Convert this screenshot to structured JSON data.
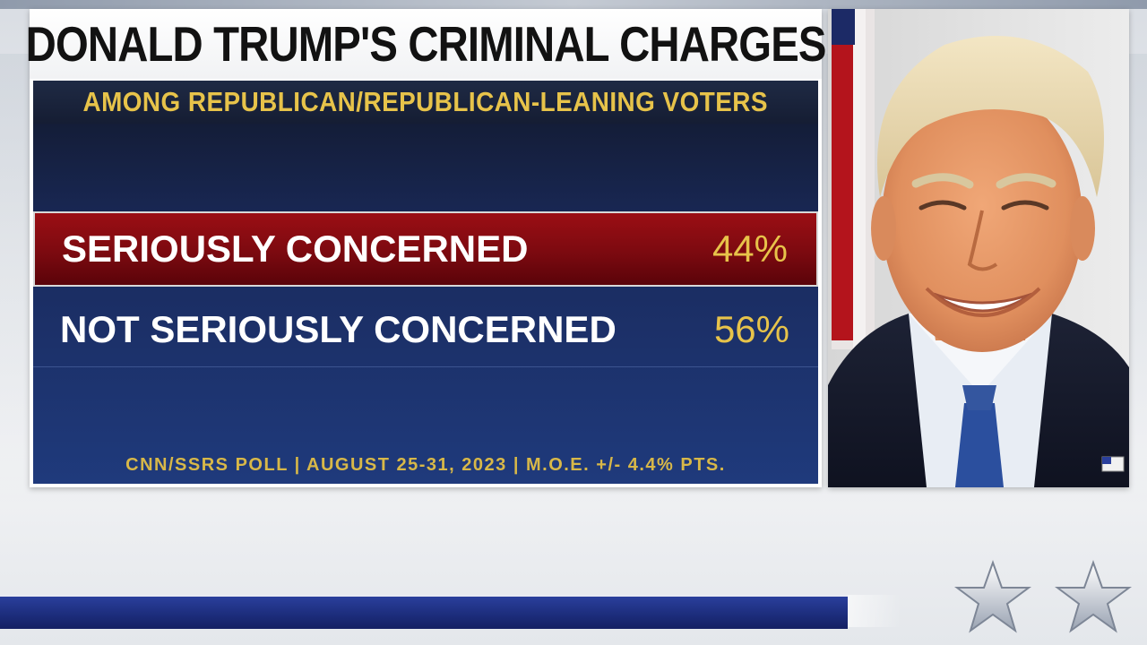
{
  "graphic": {
    "title": "DONALD TRUMP'S CRIMINAL CHARGES",
    "subtitle": "AMONG REPUBLICAN/REPUBLICAN-LEANING VOTERS",
    "source": "CNN/SSRS POLL | AUGUST 25-31, 2023 | M.O.E. +/- 4.4% PTS."
  },
  "chart_data": {
    "type": "table",
    "title": "DONALD TRUMP'S CRIMINAL CHARGES",
    "subtitle": "AMONG REPUBLICAN/REPUBLICAN-LEANING VOTERS",
    "rows": [
      {
        "label": "SERIOUSLY CONCERNED",
        "value": 44,
        "display": "44%",
        "highlighted": true
      },
      {
        "label": "NOT SERIOUSLY CONCERNED",
        "value": 56,
        "display": "56%",
        "highlighted": false
      }
    ],
    "unit": "%"
  },
  "colors": {
    "highlight_red": "#8b0c12",
    "navy": "#1a2b5e",
    "gold": "#e7c34a",
    "bottom_bar_blue": "#1c2c7a"
  },
  "icons": {
    "photo": "portrait-photo",
    "stars": "star-icon"
  }
}
